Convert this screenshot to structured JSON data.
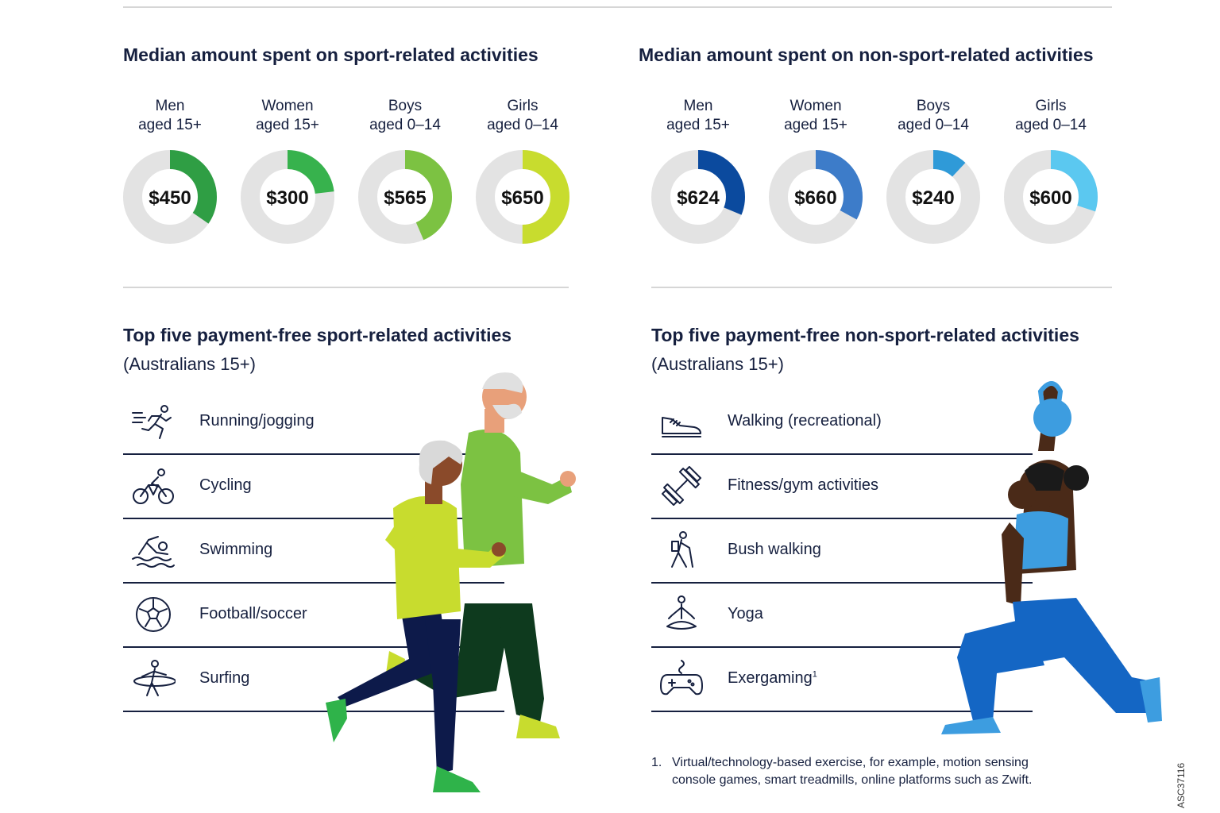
{
  "chart_data": [
    {
      "type": "donut",
      "title": "Median amount spent on sport-related activities",
      "categories": [
        "Men aged 15+",
        "Women aged 15+",
        "Boys aged 0–14",
        "Girls aged 0–14"
      ],
      "labels": [
        {
          "line1": "Men",
          "line2": "aged 15+"
        },
        {
          "line1": "Women",
          "line2": "aged 15+"
        },
        {
          "line1": "Boys",
          "line2": "aged 0–14"
        },
        {
          "line1": "Girls",
          "line2": "aged 0–14"
        }
      ],
      "values": [
        450,
        300,
        565,
        650
      ],
      "display_values": [
        "$450",
        "$300",
        "$565",
        "$650"
      ],
      "scale_max": 1300,
      "colors": [
        "#2f9e44",
        "#37b24d",
        "#7cc242",
        "#c8dc2e"
      ],
      "track_color": "#e3e3e3"
    },
    {
      "type": "donut",
      "title": "Median amount spent on non-sport-related activities",
      "categories": [
        "Men aged 15+",
        "Women aged 15+",
        "Boys aged 0–14",
        "Girls aged 0–14"
      ],
      "labels": [
        {
          "line1": "Men",
          "line2": "aged 15+"
        },
        {
          "line1": "Women",
          "line2": "aged 15+"
        },
        {
          "line1": "Boys",
          "line2": "aged 0–14"
        },
        {
          "line1": "Girls",
          "line2": "aged 0–14"
        }
      ],
      "values": [
        624,
        660,
        240,
        600
      ],
      "display_values": [
        "$624",
        "$660",
        "$240",
        "$600"
      ],
      "scale_max": 2000,
      "colors": [
        "#0b4a9e",
        "#3d7cc9",
        "#2f9ad8",
        "#5bc8f0"
      ],
      "track_color": "#e3e3e3"
    }
  ],
  "sport_list": {
    "title": "Top five payment-free sport-related activities",
    "subtitle": "(Australians 15+)",
    "items": [
      {
        "name": "Running/jogging",
        "icon": "runner-icon"
      },
      {
        "name": "Cycling",
        "icon": "cyclist-icon"
      },
      {
        "name": "Swimming",
        "icon": "swimmer-icon"
      },
      {
        "name": "Football/soccer",
        "icon": "soccer-ball-icon"
      },
      {
        "name": "Surfing",
        "icon": "surfer-icon"
      }
    ]
  },
  "nonsport_list": {
    "title": "Top five payment-free non-sport-related activities",
    "subtitle": "(Australians 15+)",
    "items": [
      {
        "name": "Walking (recreational)",
        "icon": "sneaker-icon"
      },
      {
        "name": "Fitness/gym activities",
        "icon": "dumbbell-icon"
      },
      {
        "name": "Bush walking",
        "icon": "hiker-icon"
      },
      {
        "name": "Yoga",
        "icon": "yoga-icon"
      },
      {
        "name": "Exergaming",
        "sup": "1",
        "icon": "gamepad-icon"
      }
    ]
  },
  "footnote": {
    "number": "1.",
    "line1": "Virtual/technology-based exercise, for example, motion sensing",
    "line2": "console games, smart treadmills, online platforms such as Zwift."
  },
  "doc_code": "ASC37116",
  "colors": {
    "text": "#16203f",
    "rule": "#d6d6d6"
  }
}
